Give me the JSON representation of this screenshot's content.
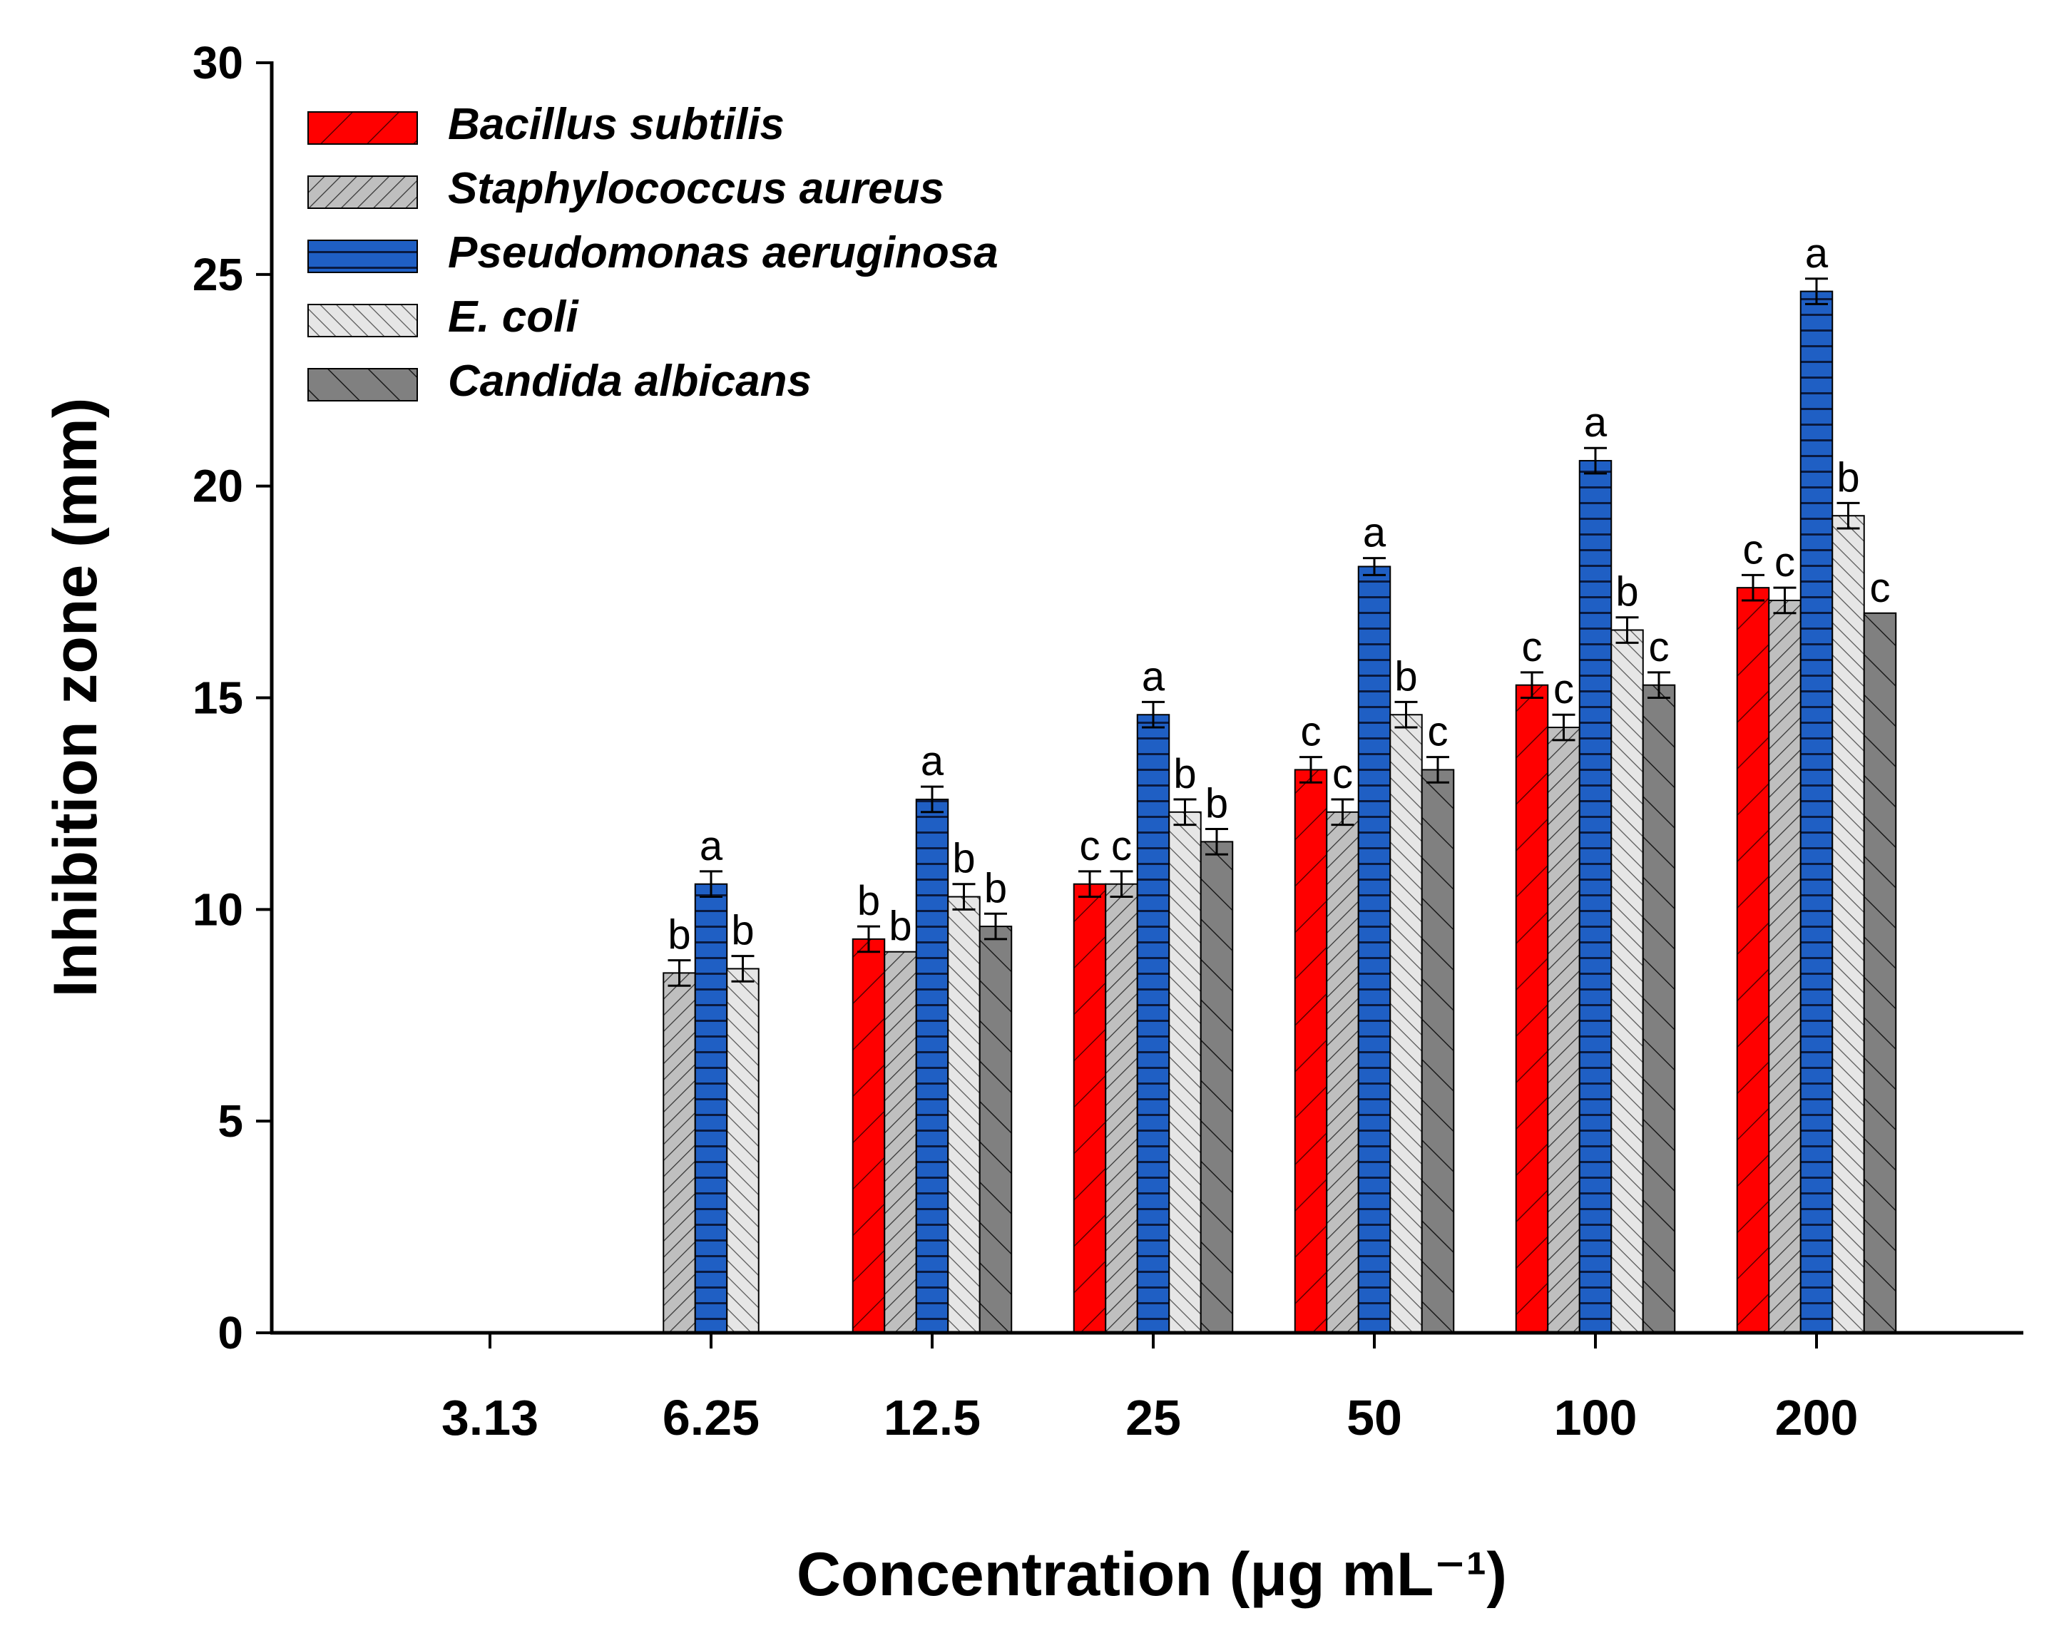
{
  "chart_data": {
    "type": "bar",
    "xlabel": "Concentration (μg mL⁻¹)",
    "ylabel": "Inhibition zone (mm)",
    "ylim": [
      0,
      30
    ],
    "yticks": [
      "0",
      "5",
      "10",
      "15",
      "20",
      "25",
      "30"
    ],
    "categories": [
      "3.13",
      "6.25",
      "12.5",
      "25",
      "50",
      "100",
      "200"
    ],
    "legend_position": "top-left",
    "series": [
      {
        "name": "Bacillus subtilis",
        "color": "#ff0000",
        "pattern": "back-diagonal",
        "values": [
          null,
          null,
          9.3,
          10.6,
          13.3,
          15.3,
          17.6
        ],
        "errors": [
          null,
          null,
          0.3,
          0.3,
          0.3,
          0.3,
          0.3
        ],
        "letters": [
          null,
          null,
          "b",
          "c",
          "c",
          "c",
          "c"
        ]
      },
      {
        "name": "Staphylococcus aureus",
        "color": "#bfbfbf",
        "pattern": "dense-back-diagonal",
        "values": [
          null,
          8.5,
          9.0,
          10.6,
          12.3,
          14.3,
          17.3
        ],
        "errors": [
          null,
          0.3,
          0.0,
          0.3,
          0.3,
          0.3,
          0.3
        ],
        "letters": [
          null,
          "b",
          "b",
          "c",
          "c",
          "c",
          "c"
        ]
      },
      {
        "name": "Pseudomonas aeruginosa",
        "color": "#1f5fc4",
        "pattern": "horizontal",
        "values": [
          null,
          10.6,
          12.6,
          14.6,
          18.1,
          20.6,
          24.6
        ],
        "errors": [
          null,
          0.3,
          0.3,
          0.3,
          0.2,
          0.3,
          0.3
        ],
        "letters": [
          null,
          "a",
          "a",
          "a",
          "a",
          "a",
          "a"
        ]
      },
      {
        "name": "E. coli",
        "color": "#e6e6e6",
        "pattern": "forward-diagonal",
        "values": [
          null,
          8.6,
          10.3,
          12.3,
          14.6,
          16.6,
          19.3
        ],
        "errors": [
          null,
          0.3,
          0.3,
          0.3,
          0.3,
          0.3,
          0.3
        ],
        "letters": [
          null,
          "b",
          "b",
          "b",
          "b",
          "b",
          "b"
        ]
      },
      {
        "name": "Candida albicans",
        "color": "#808080",
        "pattern": "sparse-forward-diagonal",
        "values": [
          null,
          null,
          9.6,
          11.6,
          13.3,
          15.3,
          17.0
        ],
        "errors": [
          null,
          null,
          0.3,
          0.3,
          0.3,
          0.3,
          0.0
        ],
        "letters": [
          null,
          null,
          "b",
          "b",
          "c",
          "c",
          "c"
        ]
      }
    ]
  }
}
